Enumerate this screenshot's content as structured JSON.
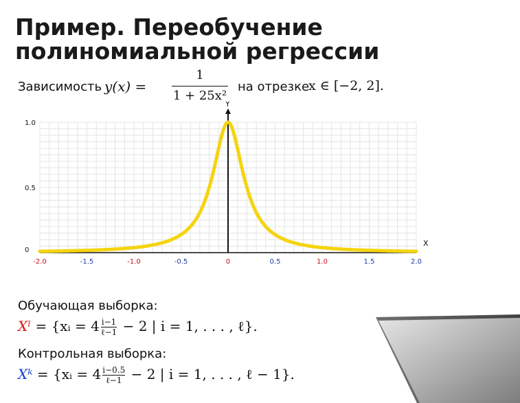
{
  "slide": {
    "title": "Пример. Переобучение полиномиальной регрессии",
    "dependency": {
      "lead": "Зависимость",
      "lhs": "y(x) =",
      "numerator": "1",
      "denominator": "1 + 25x²",
      "tail": "на отрезке",
      "domain": "x ∈ [−2, 2]."
    },
    "training": {
      "label": "Обучающая выборка:",
      "symbol": "Xˡ",
      "pre": "= {xᵢ = 4",
      "frac_num": "i−1",
      "frac_den": "ℓ−1",
      "post": "− 2 | i = 1, . . . , ℓ}."
    },
    "control": {
      "label": "Контрольная выборка:",
      "symbol": "Xᵏ",
      "pre": "= {xᵢ = 4",
      "frac_num": "i−0.5",
      "frac_den": "ℓ−1",
      "post": "− 2 | i = 1, . . . , ℓ − 1}."
    }
  },
  "chart_data": {
    "type": "line",
    "function": "y = 1/(1+25x^2)",
    "xlim": [
      -2.0,
      2.0
    ],
    "ylim": [
      0,
      1.0
    ],
    "x_axis_label": "X",
    "y_axis_label": "Y",
    "x_ticks": [
      "-2.0",
      "-1.5",
      "-1.0",
      "-0.5",
      "0",
      "0.5",
      "1.0",
      "1.5",
      "2.0"
    ],
    "x_tick_values": [
      -2.0,
      -1.5,
      -1.0,
      -0.5,
      0,
      0.5,
      1.0,
      1.5,
      2.0
    ],
    "x_tick_colors": [
      "#c0141c",
      "#1a3ea0",
      "#c0141c",
      "#1a3ea0",
      "#c0141c",
      "#1a3ea0",
      "#c0141c",
      "#1a3ea0",
      "#1a3ea0"
    ],
    "y_ticks": [
      "0",
      "0.5",
      "1.0"
    ],
    "y_tick_values": [
      0,
      0.5,
      1.0
    ],
    "grid": true,
    "line_color": "#f5d410"
  }
}
